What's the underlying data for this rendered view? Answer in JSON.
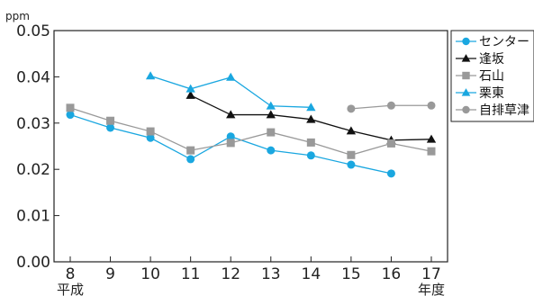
{
  "chart_data": {
    "type": "line",
    "ylabel": "ppm",
    "x": [
      8,
      9,
      10,
      11,
      12,
      13,
      14,
      15,
      16,
      17
    ],
    "x_tick_labels": [
      "8",
      "9",
      "10",
      "11",
      "12",
      "13",
      "14",
      "15",
      "16",
      "17"
    ],
    "x_sub_left": "平成",
    "x_sub_right": "年度",
    "ylim": [
      0,
      0.05
    ],
    "y_ticks": [
      0.0,
      0.01,
      0.02,
      0.03,
      0.04,
      0.05
    ],
    "y_tick_labels": [
      "0.00",
      "0.01",
      "0.02",
      "0.03",
      "0.04",
      "0.05"
    ],
    "grid": false,
    "legend": "right",
    "series": [
      {
        "name": "センター",
        "color": "#1aa7e0",
        "marker": "circle",
        "values": [
          0.0318,
          0.029,
          0.0268,
          0.0222,
          0.0271,
          0.0241,
          0.023,
          0.021,
          0.0191,
          null
        ]
      },
      {
        "name": "逢坂",
        "color": "#111111",
        "marker": "triangle",
        "values": [
          null,
          null,
          null,
          0.036,
          0.0318,
          0.0318,
          0.0308,
          0.0283,
          0.0263,
          0.0265
        ]
      },
      {
        "name": "石山",
        "color": "#999999",
        "marker": "square",
        "values": [
          0.0333,
          0.0305,
          0.0282,
          0.0241,
          0.0257,
          0.028,
          0.0258,
          0.0231,
          0.0256,
          0.0239
        ]
      },
      {
        "name": "栗東",
        "color": "#1aa7e0",
        "marker": "triangle",
        "values": [
          null,
          null,
          0.0402,
          0.0374,
          0.0399,
          0.0337,
          0.0334,
          null,
          null,
          null
        ]
      },
      {
        "name": "自排草津",
        "color": "#999999",
        "marker": "circle",
        "values": [
          null,
          null,
          null,
          null,
          null,
          null,
          null,
          0.0331,
          0.0338,
          0.0338
        ]
      }
    ]
  }
}
